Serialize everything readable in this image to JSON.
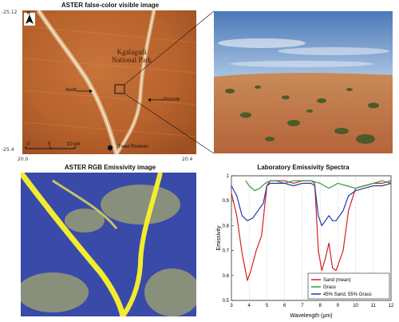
{
  "panels": {
    "top_left": {
      "title": "ASTER false-color visible image",
      "coords": {
        "lat_top": "-25.12",
        "lat_bottom": "-25.4",
        "lon_left": "20.0",
        "lon_right": "20.4"
      },
      "park_label": [
        "Kgalagadi",
        "National Park"
      ],
      "labels": {
        "auob": "Auob",
        "nossob": "Nossob",
        "twee": "Twee Rivieren"
      },
      "scale": {
        "ticks": [
          "0",
          "5",
          "10 km"
        ]
      },
      "north": "N"
    },
    "bottom_left": {
      "title": "ASTER RGB Emissivity image"
    },
    "bottom_right": {
      "title": "Laboratory Emissivity Spectra"
    }
  },
  "chart_data": {
    "type": "line",
    "title": "Laboratory Emissivity Spectra",
    "xlabel": "Wavelength (μm)",
    "ylabel": "Emissivity",
    "xlim": [
      3,
      12
    ],
    "ylim": [
      0.5,
      1.0
    ],
    "x_ticks": [
      "3",
      "4",
      "5",
      "6",
      "7",
      "8",
      "9",
      "10",
      "11",
      "12"
    ],
    "y_ticks": [
      "0.5",
      "0.6",
      "0.7",
      "0.8",
      "0.9",
      "1"
    ],
    "legend_position": "bottom-right",
    "series": [
      {
        "name": "Sand (mean)",
        "color": "#d42020",
        "x": [
          3.0,
          3.3,
          3.6,
          3.9,
          4.1,
          4.4,
          4.7,
          5.0,
          5.2,
          5.5,
          6.0,
          6.5,
          7.0,
          7.5,
          7.7,
          7.9,
          8.1,
          8.3,
          8.5,
          8.7,
          8.9,
          9.1,
          9.3,
          9.6,
          10.0,
          10.5,
          11.0,
          11.5,
          12.0
        ],
        "y": [
          0.93,
          0.84,
          0.69,
          0.58,
          0.62,
          0.7,
          0.76,
          0.96,
          0.98,
          0.98,
          0.98,
          0.97,
          0.98,
          0.98,
          0.97,
          0.7,
          0.62,
          0.67,
          0.73,
          0.63,
          0.62,
          0.66,
          0.7,
          0.86,
          0.95,
          0.96,
          0.97,
          0.97,
          0.98
        ]
      },
      {
        "name": "Grass",
        "color": "#2e9b3a",
        "x": [
          3.8,
          4.0,
          4.3,
          4.6,
          4.9,
          5.2,
          5.5,
          6.0,
          6.5,
          7.0,
          7.5,
          8.0,
          8.5,
          9.0,
          9.5,
          10.0,
          10.5,
          11.0,
          11.5,
          12.0
        ],
        "y": [
          0.98,
          0.96,
          0.94,
          0.95,
          0.97,
          0.98,
          0.98,
          0.97,
          0.98,
          0.98,
          0.98,
          0.97,
          0.95,
          0.97,
          0.96,
          0.95,
          0.96,
          0.97,
          0.98,
          0.97
        ]
      },
      {
        "name": "45% Sand, 55% Grass",
        "color": "#1e3aa8",
        "x": [
          3.0,
          3.3,
          3.6,
          3.9,
          4.2,
          4.5,
          4.8,
          5.0,
          5.2,
          5.5,
          6.0,
          6.5,
          7.0,
          7.5,
          7.7,
          7.9,
          8.1,
          8.3,
          8.5,
          8.7,
          8.9,
          9.1,
          9.3,
          9.6,
          10.0,
          10.5,
          11.0,
          11.5,
          12.0
        ],
        "y": [
          0.96,
          0.92,
          0.84,
          0.82,
          0.83,
          0.86,
          0.89,
          0.96,
          0.97,
          0.97,
          0.97,
          0.96,
          0.97,
          0.97,
          0.96,
          0.84,
          0.8,
          0.82,
          0.84,
          0.82,
          0.82,
          0.84,
          0.86,
          0.92,
          0.94,
          0.95,
          0.96,
          0.96,
          0.97
        ]
      }
    ]
  }
}
